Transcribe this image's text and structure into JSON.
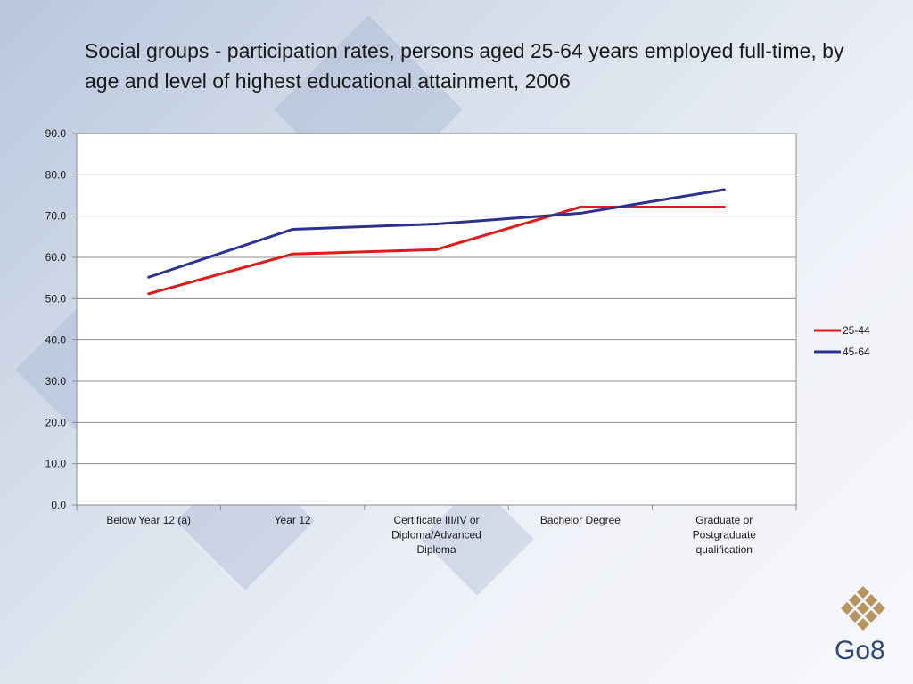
{
  "slide": {
    "title": "Social groups - participation rates, persons aged 25-64 years employed full-time, by age and level of highest educational attainment, 2006",
    "logo_text": "Go8",
    "logo_color": "#b8945a"
  },
  "chart_data": {
    "type": "line",
    "categories": [
      "Below Year 12 (a)",
      "Year 12",
      "Certificate III/IV or Diploma/Advanced Diploma",
      "Bachelor Degree",
      "Graduate or Postgraduate qualification"
    ],
    "category_lines": [
      [
        "Below Year 12 (a)"
      ],
      [
        "Year 12"
      ],
      [
        "Certificate III/IV or",
        "Diploma/Advanced",
        "Diploma"
      ],
      [
        "Bachelor Degree"
      ],
      [
        "Graduate or",
        "Postgraduate",
        "qualification"
      ]
    ],
    "series": [
      {
        "name": "25-44",
        "color": "#e01a1a",
        "values": [
          51.2,
          60.8,
          61.9,
          72.2,
          72.2
        ]
      },
      {
        "name": "45-64",
        "color": "#2b3190",
        "values": [
          55.2,
          66.8,
          68.1,
          70.7,
          76.4
        ]
      }
    ],
    "ylim": [
      0,
      90
    ],
    "yticks": [
      "0.0",
      "10.0",
      "20.0",
      "30.0",
      "40.0",
      "50.0",
      "60.0",
      "70.0",
      "80.0",
      "90.0"
    ],
    "grid": true,
    "legend": "right"
  }
}
